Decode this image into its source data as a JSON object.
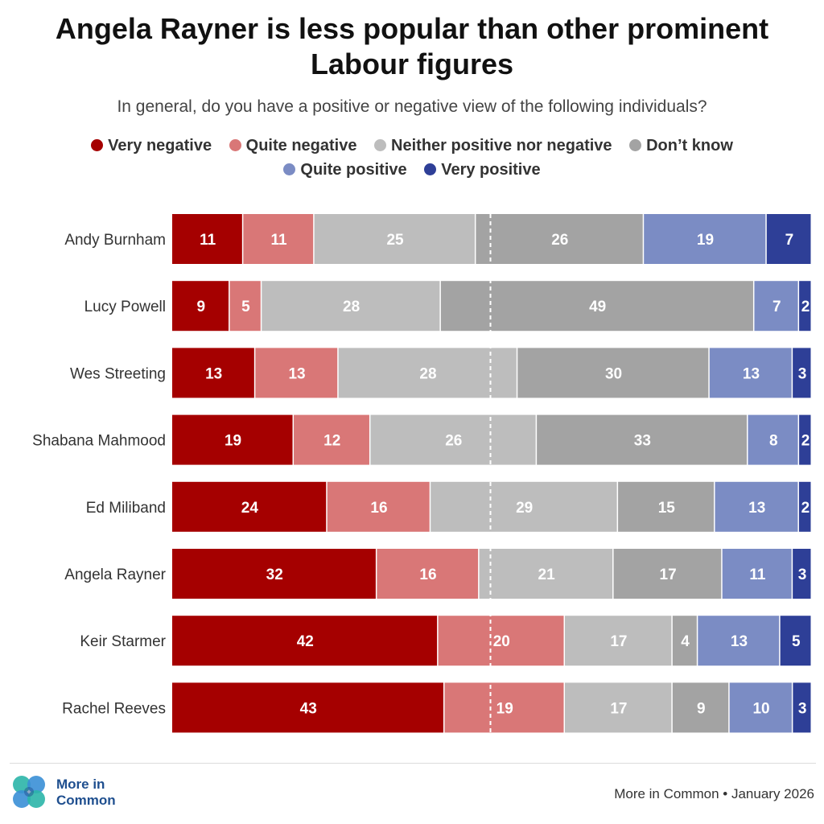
{
  "title_line1": "Angela Rayner is less popular than other prominent",
  "title_line2": "Labour figures",
  "subtitle": "In general, do you have a positive or negative view of the following individuals?",
  "legend": [
    {
      "label": "Very negative",
      "color": "#a50000"
    },
    {
      "label": "Quite negative",
      "color": "#d97777"
    },
    {
      "label": "Neither positive nor negative",
      "color": "#bdbdbd"
    },
    {
      "label": "Don’t know",
      "color": "#a3a3a3"
    },
    {
      "label": "Quite positive",
      "color": "#7b8cc4"
    },
    {
      "label": "Very positive",
      "color": "#2e3f97"
    }
  ],
  "chart_data": {
    "type": "bar",
    "orientation": "horizontal",
    "stacked": true,
    "normalized": "100%",
    "categories": [
      "Andy Burnham",
      "Lucy Powell",
      "Wes Streeting",
      "Shabana Mahmood",
      "Ed Miliband",
      "Angela Rayner",
      "Keir Starmer",
      "Rachel Reeves"
    ],
    "series": [
      {
        "name": "Very negative",
        "values": [
          11,
          9,
          13,
          19,
          24,
          32,
          42,
          43
        ]
      },
      {
        "name": "Quite negative",
        "values": [
          11,
          5,
          13,
          12,
          16,
          16,
          20,
          19
        ]
      },
      {
        "name": "Neither positive nor negative",
        "values": [
          25,
          28,
          28,
          26,
          29,
          21,
          17,
          17
        ]
      },
      {
        "name": "Don’t know",
        "values": [
          26,
          49,
          30,
          33,
          15,
          17,
          4,
          9
        ]
      },
      {
        "name": "Quite positive",
        "values": [
          19,
          7,
          13,
          8,
          13,
          11,
          13,
          10
        ]
      },
      {
        "name": "Very positive",
        "values": [
          7,
          2,
          3,
          2,
          2,
          3,
          5,
          3
        ]
      }
    ],
    "reference_line": {
      "style": "dashed",
      "position": "midpoint"
    },
    "legend_position": "top"
  },
  "footer": {
    "logo_line1": "More in",
    "logo_line2": "Common",
    "source": "More in Common • January 2026"
  }
}
